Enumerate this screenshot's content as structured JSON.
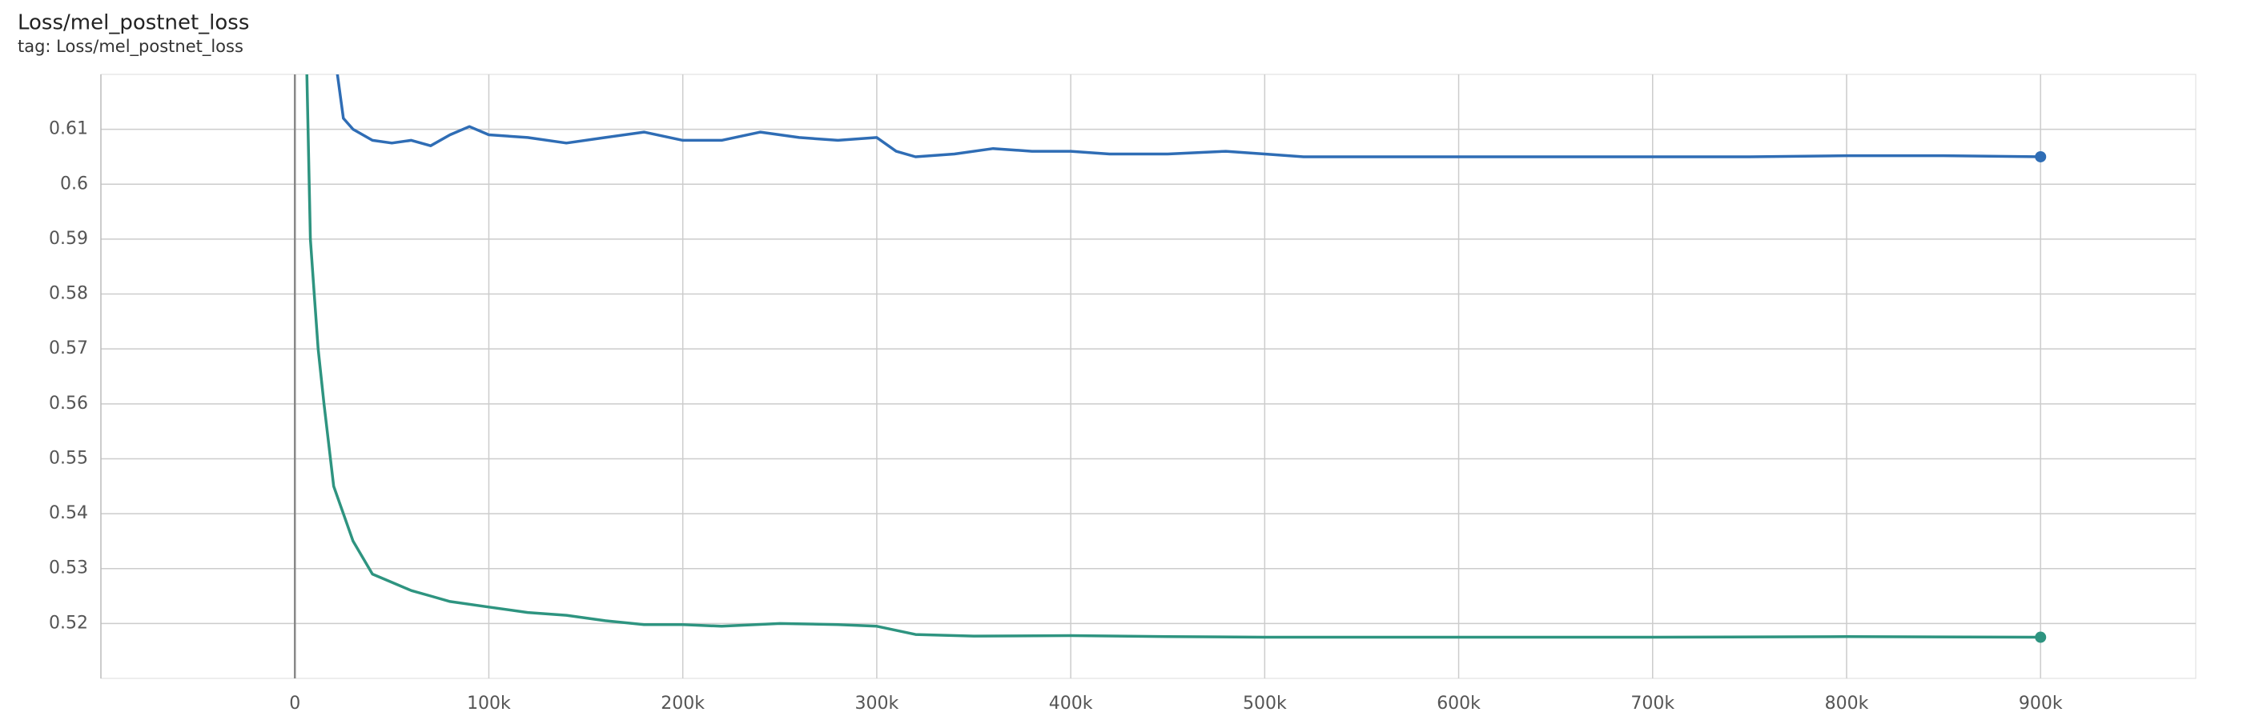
{
  "chart_data": {
    "type": "line",
    "title": "Loss/mel_postnet_loss",
    "subtitle": "tag: Loss/mel_postnet_loss",
    "xlim": [
      -100000,
      980000
    ],
    "ylim": [
      0.51,
      0.62
    ],
    "xticks": [
      0,
      {
        "value": 100000,
        "label": "100k"
      },
      {
        "value": 200000,
        "label": "200k"
      },
      {
        "value": 300000,
        "label": "300k"
      },
      {
        "value": 400000,
        "label": "400k"
      },
      {
        "value": 500000,
        "label": "500k"
      },
      {
        "value": 600000,
        "label": "600k"
      },
      {
        "value": 700000,
        "label": "700k"
      },
      {
        "value": 800000,
        "label": "800k"
      },
      {
        "value": 900000,
        "label": "900k"
      }
    ],
    "yticks": [
      0.52,
      0.53,
      0.54,
      0.55,
      0.56,
      0.57,
      0.58,
      0.59,
      0.6,
      0.61
    ],
    "grid": true,
    "series": [
      {
        "color": "#2f6db5",
        "x": [
          20000,
          25000,
          30000,
          40000,
          50000,
          60000,
          70000,
          80000,
          90000,
          100000,
          120000,
          140000,
          160000,
          180000,
          200000,
          220000,
          240000,
          260000,
          280000,
          300000,
          310000,
          320000,
          340000,
          360000,
          380000,
          400000,
          420000,
          450000,
          480000,
          500000,
          520000,
          550000,
          600000,
          650000,
          700000,
          750000,
          800000,
          850000,
          900000
        ],
        "values": [
          0.625,
          0.612,
          0.61,
          0.608,
          0.6075,
          0.608,
          0.607,
          0.609,
          0.6105,
          0.609,
          0.6085,
          0.6075,
          0.6085,
          0.6095,
          0.608,
          0.608,
          0.6095,
          0.6085,
          0.608,
          0.6085,
          0.606,
          0.605,
          0.6055,
          0.6065,
          0.606,
          0.606,
          0.6055,
          0.6055,
          0.606,
          0.6055,
          0.605,
          0.605,
          0.605,
          0.605,
          0.605,
          0.605,
          0.6052,
          0.6052,
          0.605
        ]
      },
      {
        "color": "#2e9480",
        "x": [
          5000,
          8000,
          10000,
          12000,
          15000,
          20000,
          25000,
          30000,
          35000,
          40000,
          50000,
          60000,
          70000,
          80000,
          100000,
          120000,
          140000,
          160000,
          180000,
          200000,
          220000,
          250000,
          280000,
          300000,
          320000,
          350000,
          400000,
          450000,
          500000,
          600000,
          700000,
          800000,
          900000
        ],
        "values": [
          0.64,
          0.59,
          0.58,
          0.57,
          0.56,
          0.545,
          0.54,
          0.535,
          0.532,
          0.529,
          0.5275,
          0.526,
          0.525,
          0.524,
          0.523,
          0.522,
          0.5215,
          0.5205,
          0.5198,
          0.5198,
          0.5195,
          0.52,
          0.5198,
          0.5195,
          0.518,
          0.5177,
          0.5178,
          0.5176,
          0.5175,
          0.5175,
          0.5175,
          0.5176,
          0.5175
        ]
      }
    ]
  }
}
